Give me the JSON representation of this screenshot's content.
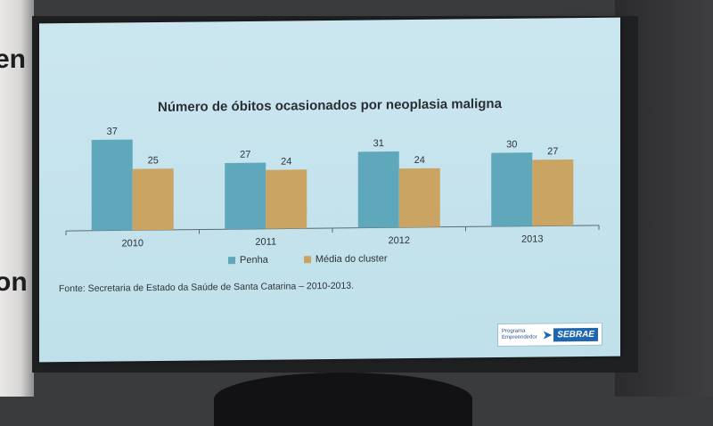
{
  "room": {
    "left_text_top": "en",
    "left_text_bottom": "on"
  },
  "slide": {
    "source": "Fonte: Secretaria de Estado da Saúde de Santa Catarina – 2010-2013.",
    "logo_small_text": "Programa Empreendedor",
    "logo_brand": "SEBRAE"
  },
  "colors": {
    "penha": "#5fa7bb",
    "media": "#c9a463",
    "axis": "#5a6a72",
    "label": "#2f3338"
  },
  "chart_data": {
    "type": "bar",
    "title": "Número de óbitos ocasionados por neoplasia maligna",
    "categories": [
      "2010",
      "2011",
      "2012",
      "2013"
    ],
    "series": [
      {
        "name": "Penha",
        "values": [
          37,
          27,
          31,
          30
        ]
      },
      {
        "name": "Média do cluster",
        "values": [
          25,
          24,
          24,
          27
        ]
      }
    ],
    "ylim": [
      0,
      40
    ],
    "grid": false,
    "legend": "bottom"
  }
}
